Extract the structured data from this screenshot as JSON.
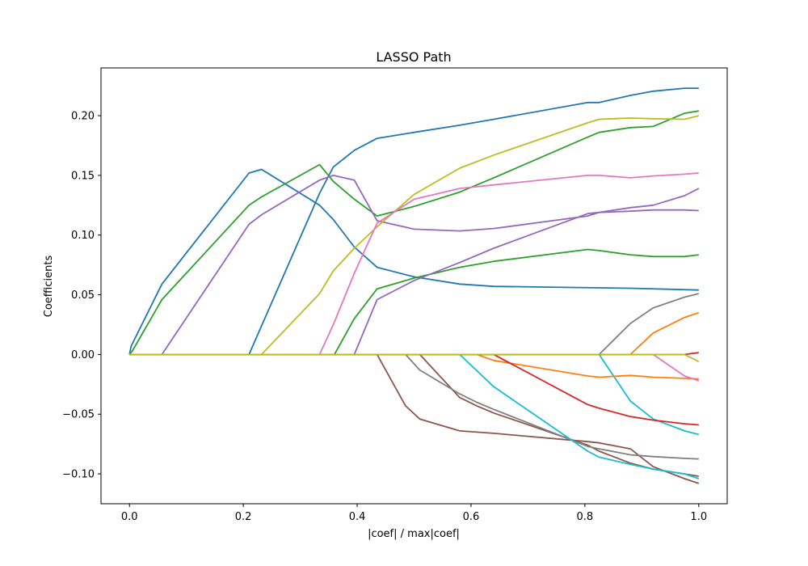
{
  "chart_data": {
    "type": "line",
    "title": "LASSO Path",
    "xlabel": "|coef| / max|coef|",
    "ylabel": "Coefficients",
    "xlim": [
      -0.05,
      1.05
    ],
    "ylim": [
      -0.125,
      0.24
    ],
    "xticks": [
      0.0,
      0.2,
      0.4,
      0.6,
      0.8,
      1.0
    ],
    "xtick_labels": [
      "0.0",
      "0.2",
      "0.4",
      "0.6",
      "0.8",
      "1.0"
    ],
    "yticks": [
      -0.1,
      -0.05,
      0.0,
      0.05,
      0.1,
      0.15,
      0.2
    ],
    "ytick_labels": [
      "−0.10",
      "−0.05",
      "0.00",
      "0.05",
      "0.10",
      "0.15",
      "0.20"
    ],
    "grid": false,
    "legend": "none",
    "series": [
      {
        "color": "#1f77b4",
        "points": [
          [
            0,
            0
          ],
          [
            0.003,
            0.007
          ],
          [
            0.057,
            0.059
          ],
          [
            0.21,
            0.152
          ],
          [
            0.232,
            0.155
          ],
          [
            0.334,
            0.125
          ],
          [
            0.358,
            0.113
          ],
          [
            0.395,
            0.09
          ],
          [
            0.435,
            0.073
          ],
          [
            0.5,
            0.065
          ],
          [
            0.58,
            0.059
          ],
          [
            0.64,
            0.057
          ],
          [
            0.88,
            0.0555
          ],
          [
            1.0,
            0.054
          ]
        ]
      },
      {
        "color": "#1f77b4",
        "points": [
          [
            0,
            0
          ],
          [
            0.21,
            0
          ],
          [
            0.334,
            0.135
          ],
          [
            0.358,
            0.157
          ],
          [
            0.395,
            0.171
          ],
          [
            0.435,
            0.181
          ],
          [
            0.5,
            0.186
          ],
          [
            0.58,
            0.192
          ],
          [
            0.64,
            0.197
          ],
          [
            0.805,
            0.211
          ],
          [
            0.825,
            0.211
          ],
          [
            0.88,
            0.217
          ],
          [
            0.92,
            0.2205
          ],
          [
            0.975,
            0.223
          ],
          [
            1.0,
            0.223
          ]
        ]
      },
      {
        "color": "#2ca02c",
        "points": [
          [
            0,
            0
          ],
          [
            0.005,
            0.003
          ],
          [
            0.057,
            0.046
          ],
          [
            0.21,
            0.125
          ],
          [
            0.232,
            0.132
          ],
          [
            0.334,
            0.159
          ],
          [
            0.358,
            0.145
          ],
          [
            0.395,
            0.13
          ],
          [
            0.435,
            0.116
          ],
          [
            0.5,
            0.124
          ],
          [
            0.58,
            0.136
          ],
          [
            0.64,
            0.148
          ],
          [
            0.805,
            0.182
          ],
          [
            0.825,
            0.186
          ],
          [
            0.88,
            0.19
          ],
          [
            0.92,
            0.191
          ],
          [
            0.975,
            0.202
          ],
          [
            1.0,
            0.204
          ]
        ]
      },
      {
        "color": "#2ca02c",
        "points": [
          [
            0,
            0
          ],
          [
            0.36,
            0
          ],
          [
            0.395,
            0.03
          ],
          [
            0.435,
            0.055
          ],
          [
            0.5,
            0.064
          ],
          [
            0.58,
            0.073
          ],
          [
            0.64,
            0.078
          ],
          [
            0.805,
            0.088
          ],
          [
            0.825,
            0.087
          ],
          [
            0.88,
            0.0835
          ],
          [
            0.92,
            0.082
          ],
          [
            0.975,
            0.082
          ],
          [
            1.0,
            0.0835
          ]
        ]
      },
      {
        "color": "#9467bd",
        "points": [
          [
            0,
            0
          ],
          [
            0.057,
            0
          ],
          [
            0.21,
            0.109
          ],
          [
            0.232,
            0.117
          ],
          [
            0.334,
            0.146
          ],
          [
            0.358,
            0.15
          ],
          [
            0.395,
            0.146
          ],
          [
            0.435,
            0.112
          ],
          [
            0.5,
            0.105
          ],
          [
            0.58,
            0.1035
          ],
          [
            0.64,
            0.1055
          ],
          [
            0.805,
            0.116
          ],
          [
            0.825,
            0.119
          ],
          [
            0.88,
            0.12
          ],
          [
            0.92,
            0.121
          ],
          [
            0.975,
            0.121
          ],
          [
            1.0,
            0.1205
          ]
        ]
      },
      {
        "color": "#9467bd",
        "points": [
          [
            0,
            0
          ],
          [
            0.395,
            0
          ],
          [
            0.435,
            0.046
          ],
          [
            0.5,
            0.062
          ],
          [
            0.58,
            0.077
          ],
          [
            0.64,
            0.089
          ],
          [
            0.805,
            0.118
          ],
          [
            0.825,
            0.119
          ],
          [
            0.88,
            0.123
          ],
          [
            0.92,
            0.125
          ],
          [
            0.975,
            0.133
          ],
          [
            1.0,
            0.139
          ]
        ]
      },
      {
        "color": "#bcbd22",
        "points": [
          [
            0,
            0
          ],
          [
            0.232,
            0
          ],
          [
            0.334,
            0.051
          ],
          [
            0.358,
            0.07
          ],
          [
            0.395,
            0.089
          ],
          [
            0.435,
            0.107
          ],
          [
            0.5,
            0.134
          ],
          [
            0.58,
            0.156
          ],
          [
            0.64,
            0.167
          ],
          [
            0.805,
            0.194
          ],
          [
            0.825,
            0.197
          ],
          [
            0.88,
            0.198
          ],
          [
            0.92,
            0.1975
          ],
          [
            0.975,
            0.197
          ],
          [
            1.0,
            0.2
          ]
        ]
      },
      {
        "color": "#e377c2",
        "points": [
          [
            0,
            0
          ],
          [
            0.334,
            0
          ],
          [
            0.358,
            0.025
          ],
          [
            0.395,
            0.068
          ],
          [
            0.435,
            0.11
          ],
          [
            0.5,
            0.13
          ],
          [
            0.58,
            0.139
          ],
          [
            0.64,
            0.142
          ],
          [
            0.805,
            0.15
          ],
          [
            0.825,
            0.15
          ],
          [
            0.88,
            0.148
          ],
          [
            0.92,
            0.1495
          ],
          [
            0.975,
            0.151
          ],
          [
            1.0,
            0.152
          ]
        ]
      },
      {
        "color": "#8c564b",
        "points": [
          [
            0,
            0
          ],
          [
            0.435,
            0
          ],
          [
            0.485,
            -0.043
          ],
          [
            0.51,
            -0.054
          ],
          [
            0.58,
            -0.064
          ],
          [
            0.64,
            -0.066
          ],
          [
            0.805,
            -0.073
          ],
          [
            0.825,
            -0.074
          ],
          [
            0.88,
            -0.079
          ],
          [
            0.92,
            -0.094
          ],
          [
            0.975,
            -0.104
          ],
          [
            1.0,
            -0.108
          ]
        ]
      },
      {
        "color": "#8c564b",
        "points": [
          [
            0,
            0
          ],
          [
            0.51,
            0
          ],
          [
            0.58,
            -0.036
          ],
          [
            0.61,
            -0.043
          ],
          [
            0.64,
            -0.049
          ],
          [
            0.805,
            -0.076
          ],
          [
            0.825,
            -0.081
          ],
          [
            0.88,
            -0.091
          ],
          [
            0.92,
            -0.096
          ],
          [
            0.975,
            -0.1
          ],
          [
            1.0,
            -0.102
          ]
        ]
      },
      {
        "color": "#7f7f7f",
        "points": [
          [
            0,
            0
          ],
          [
            0.485,
            0
          ],
          [
            0.51,
            -0.013
          ],
          [
            0.58,
            -0.033
          ],
          [
            0.61,
            -0.04
          ],
          [
            0.64,
            -0.046
          ],
          [
            0.805,
            -0.077
          ],
          [
            0.825,
            -0.079
          ],
          [
            0.88,
            -0.084
          ],
          [
            0.92,
            -0.0855
          ],
          [
            0.975,
            -0.087
          ],
          [
            1.0,
            -0.0875
          ]
        ]
      },
      {
        "color": "#7f7f7f",
        "points": [
          [
            0,
            0
          ],
          [
            0.825,
            0
          ],
          [
            0.88,
            0.026
          ],
          [
            0.92,
            0.039
          ],
          [
            0.975,
            0.048
          ],
          [
            1.0,
            0.051
          ]
        ]
      },
      {
        "color": "#17becf",
        "points": [
          [
            0,
            0
          ],
          [
            0.58,
            0
          ],
          [
            0.64,
            -0.027
          ],
          [
            0.805,
            -0.081
          ],
          [
            0.825,
            -0.086
          ],
          [
            0.88,
            -0.092
          ],
          [
            0.92,
            -0.096
          ],
          [
            0.975,
            -0.1
          ],
          [
            1.0,
            -0.104
          ]
        ]
      },
      {
        "color": "#17becf",
        "points": [
          [
            0,
            0
          ],
          [
            0.825,
            0
          ],
          [
            0.88,
            -0.039
          ],
          [
            0.92,
            -0.054
          ],
          [
            0.975,
            -0.064
          ],
          [
            1.0,
            -0.067
          ]
        ]
      },
      {
        "color": "#ff7f0e",
        "points": [
          [
            0,
            0
          ],
          [
            0.61,
            0
          ],
          [
            0.64,
            -0.005
          ],
          [
            0.805,
            -0.018
          ],
          [
            0.825,
            -0.019
          ],
          [
            0.88,
            -0.0175
          ],
          [
            0.92,
            -0.019
          ],
          [
            0.975,
            -0.02
          ],
          [
            1.0,
            -0.0205
          ]
        ]
      },
      {
        "color": "#ff7f0e",
        "points": [
          [
            0,
            0
          ],
          [
            0.88,
            0
          ],
          [
            0.92,
            0.018
          ],
          [
            0.975,
            0.031
          ],
          [
            1.0,
            0.035
          ]
        ]
      },
      {
        "color": "#d62728",
        "points": [
          [
            0,
            0
          ],
          [
            0.64,
            0
          ],
          [
            0.805,
            -0.042
          ],
          [
            0.825,
            -0.045
          ],
          [
            0.88,
            -0.052
          ],
          [
            0.92,
            -0.055
          ],
          [
            0.975,
            -0.058
          ],
          [
            1.0,
            -0.059
          ]
        ]
      },
      {
        "color": "#d62728",
        "points": [
          [
            0,
            0
          ],
          [
            0.975,
            0
          ],
          [
            1.0,
            0.0015
          ]
        ]
      },
      {
        "color": "#e377c2",
        "points": [
          [
            0,
            0
          ],
          [
            0.92,
            0
          ],
          [
            0.975,
            -0.018
          ],
          [
            1.0,
            -0.022
          ]
        ]
      },
      {
        "color": "#bcbd22",
        "points": [
          [
            0,
            0
          ],
          [
            0.975,
            0
          ],
          [
            1.0,
            -0.006
          ]
        ]
      }
    ]
  }
}
